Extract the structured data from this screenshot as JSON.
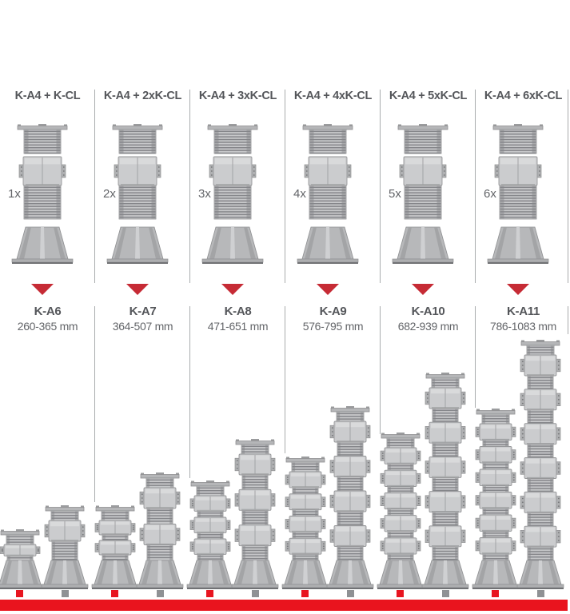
{
  "diagram": {
    "configurations": [
      {
        "header": "K-A4 + K-CL",
        "multiplier": "1x",
        "model": "K-A6",
        "range": "260-365 mm",
        "min_mm": 260,
        "max_mm": 365,
        "extenders": 1
      },
      {
        "header": "K-A4 + 2xK-CL",
        "multiplier": "2x",
        "model": "K-A7",
        "range": "364-507 mm",
        "min_mm": 364,
        "max_mm": 507,
        "extenders": 2
      },
      {
        "header": "K-A4 + 3xK-CL",
        "multiplier": "3x",
        "model": "K-A8",
        "range": "471-651 mm",
        "min_mm": 471,
        "max_mm": 651,
        "extenders": 3
      },
      {
        "header": "K-A4 + 4xK-CL",
        "multiplier": "4x",
        "model": "K-A9",
        "range": "576-795 mm",
        "min_mm": 576,
        "max_mm": 795,
        "extenders": 4
      },
      {
        "header": "K-A4 + 5xK-CL",
        "multiplier": "5x",
        "model": "K-A10",
        "range": "682-939 mm",
        "min_mm": 682,
        "max_mm": 939,
        "extenders": 5
      },
      {
        "header": "K-A4 + 6xK-CL",
        "multiplier": "6x",
        "model": "K-A11",
        "range": "786-1083 mm",
        "min_mm": 786,
        "max_mm": 1083,
        "extenders": 6
      }
    ],
    "colors": {
      "accent_red": "#e9141e",
      "arrow_red": "#c62b35",
      "marker_min_red": "#e8141f",
      "marker_max_gray": "#8f9194",
      "text_dark": "#54565a",
      "text_mid": "#636569",
      "divider_gray": "#a9abad"
    }
  }
}
